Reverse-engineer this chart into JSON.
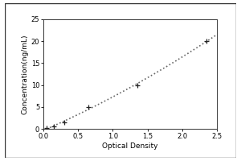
{
  "x_data": [
    0.05,
    0.15,
    0.3,
    0.65,
    1.35,
    2.35
  ],
  "y_data": [
    0.1,
    0.5,
    1.5,
    5.0,
    10.0,
    20.0
  ],
  "xlabel": "Optical Density",
  "ylabel": "Concentration(ng/mL)",
  "xlim": [
    0,
    2.5
  ],
  "ylim": [
    0,
    25
  ],
  "xticks": [
    0,
    0.5,
    1,
    1.5,
    2,
    2.5
  ],
  "yticks": [
    0,
    5,
    10,
    15,
    20,
    25
  ],
  "line_color": "#666666",
  "marker_color": "#222222",
  "bg_color": "#ffffff",
  "outer_bg": "#e8e8e8",
  "label_fontsize": 6.5,
  "tick_fontsize": 6,
  "figsize": [
    3.0,
    2.0
  ],
  "dpi": 100
}
